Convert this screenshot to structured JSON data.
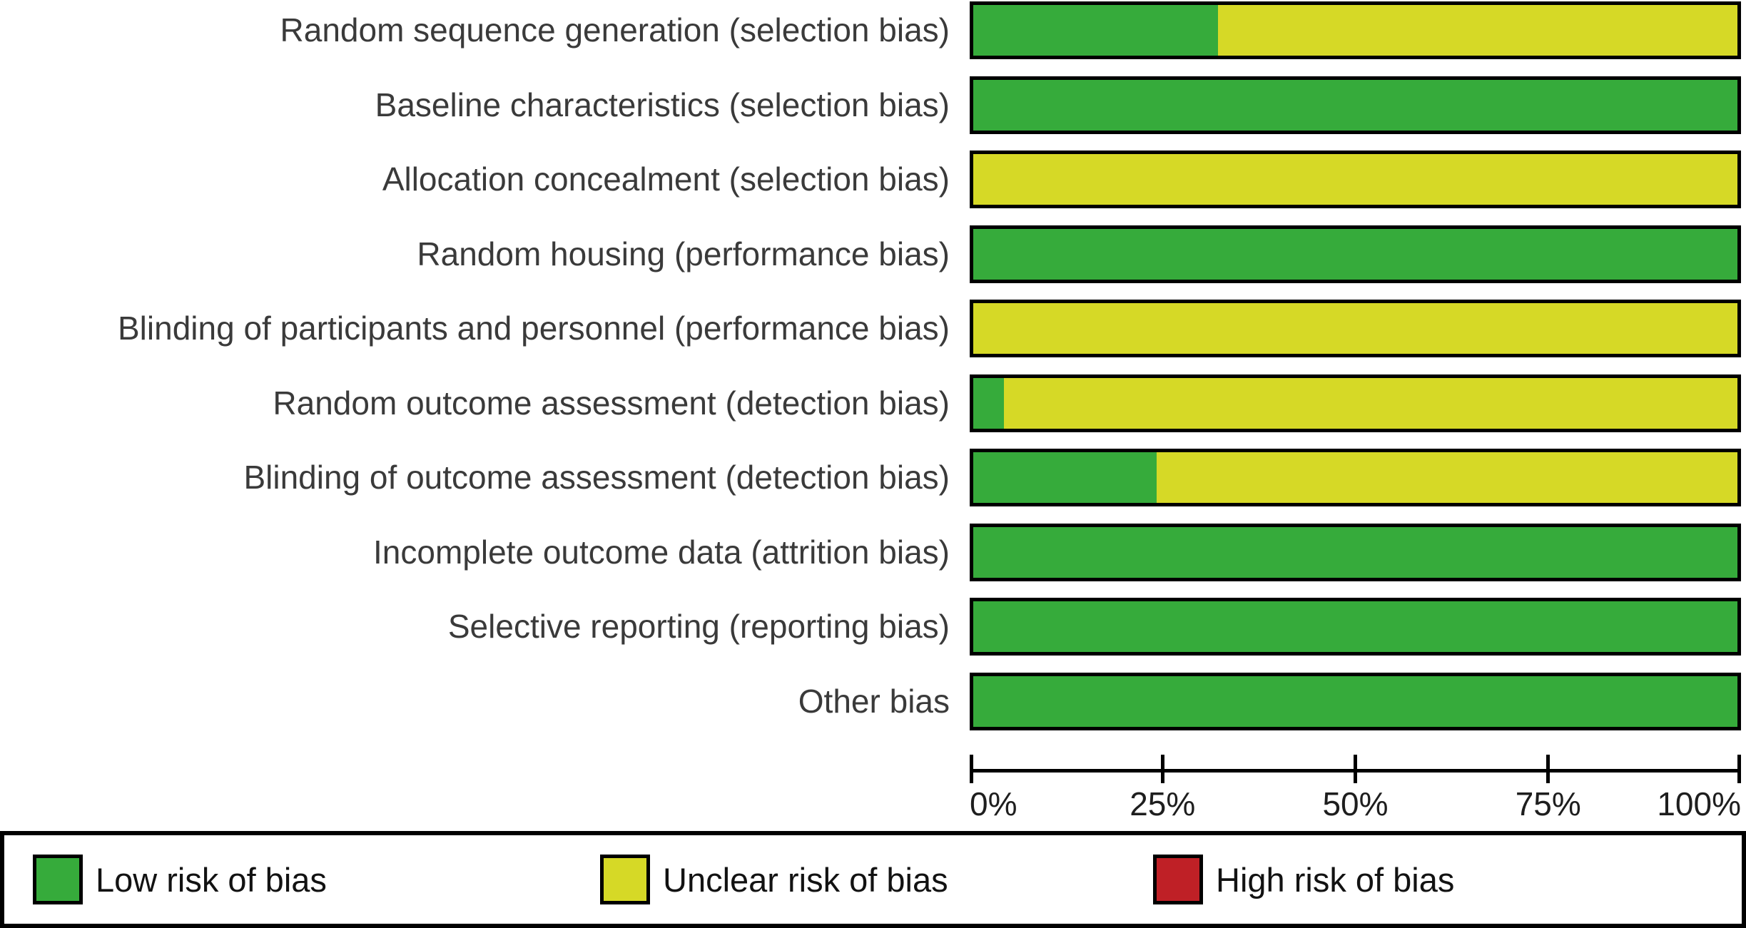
{
  "chart_data": {
    "type": "bar",
    "orientation": "horizontal",
    "stacked": true,
    "grid": false,
    "xlim": [
      0,
      100
    ],
    "x_tick_labels": [
      "0%",
      "25%",
      "50%",
      "75%",
      "100%"
    ],
    "x_tick_values": [
      0,
      25,
      50,
      75,
      100
    ],
    "legend_position": "bottom",
    "categories": [
      "Random sequence generation (selection bias)",
      "Baseline characteristics (selection bias)",
      "Allocation concealment (selection bias)",
      "Random housing (performance bias)",
      "Blinding of participants and personnel (performance bias)",
      "Random outcome assessment (detection bias)",
      "Blinding of outcome assessment (detection bias)",
      "Incomplete outcome data (attrition bias)",
      "Selective reporting (reporting bias)",
      "Other bias"
    ],
    "series": [
      {
        "name": "Low risk of bias",
        "key": "low",
        "color": "#36ab3b",
        "values": [
          32,
          100,
          0,
          100,
          0,
          4,
          24,
          100,
          100,
          100
        ]
      },
      {
        "name": "Unclear risk of bias",
        "key": "unclear",
        "color": "#d6d926",
        "values": [
          68,
          0,
          100,
          0,
          100,
          96,
          76,
          0,
          0,
          0
        ]
      },
      {
        "name": "High risk of bias",
        "key": "high",
        "color": "#bf2026",
        "values": [
          0,
          0,
          0,
          0,
          0,
          0,
          0,
          0,
          0,
          0
        ]
      }
    ]
  },
  "colors": {
    "bar_border": "#000000",
    "axis": "#000000",
    "label_text": "#3a3a3a",
    "legend_text": "#121212",
    "background": "#ffffff"
  }
}
